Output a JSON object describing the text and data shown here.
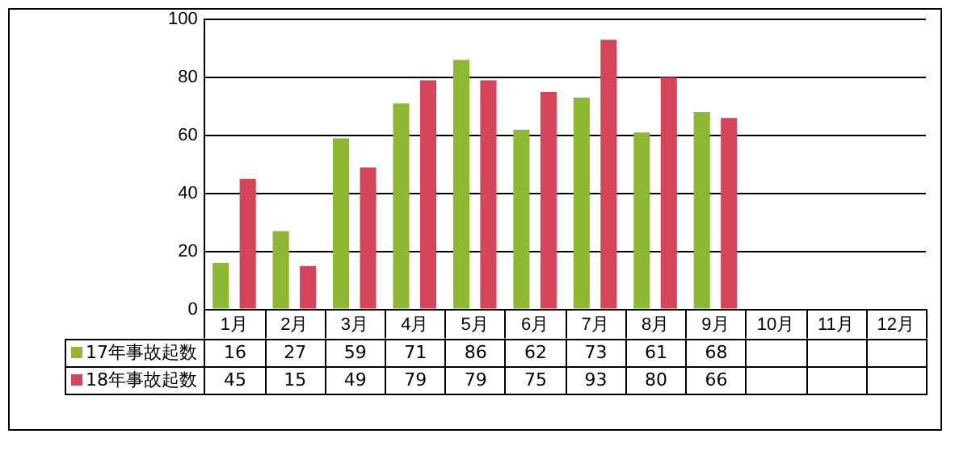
{
  "chart_data": {
    "type": "bar",
    "categories": [
      "1月",
      "2月",
      "3月",
      "4月",
      "5月",
      "6月",
      "7月",
      "8月",
      "9月",
      "10月",
      "11月",
      "12月"
    ],
    "series": [
      {
        "name": "17年事故起数",
        "color": "#8fb832",
        "values": [
          16,
          27,
          59,
          71,
          86,
          62,
          73,
          61,
          68,
          null,
          null,
          null
        ]
      },
      {
        "name": "18年事故起数",
        "color": "#d44559",
        "values": [
          45,
          15,
          49,
          79,
          79,
          75,
          93,
          80,
          66,
          null,
          null,
          null
        ]
      }
    ],
    "ylim": [
      0,
      100
    ],
    "yticks": [
      0,
      20,
      40,
      60,
      80,
      100
    ],
    "grid": "y",
    "legend": "bottom",
    "data_labels": true
  }
}
